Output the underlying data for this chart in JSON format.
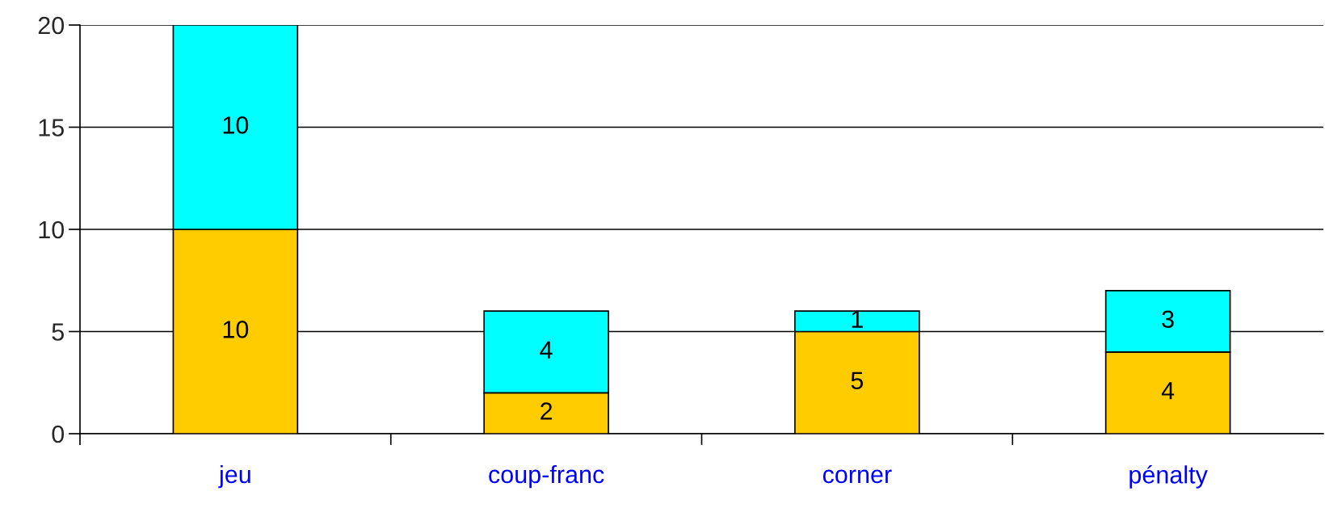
{
  "chart_data": {
    "type": "bar",
    "stacked": true,
    "categories": [
      "jeu",
      "coup-franc",
      "corner",
      "pénalty"
    ],
    "series": [
      {
        "color": "#ffcc00",
        "values": [
          10,
          2,
          5,
          4
        ]
      },
      {
        "color": "#00ffff",
        "values": [
          10,
          4,
          1,
          3
        ]
      }
    ],
    "ylim": [
      0,
      20
    ],
    "yticks": [
      0,
      5,
      10,
      15,
      20
    ],
    "grid": "y",
    "data_labels": true,
    "legend": false
  }
}
